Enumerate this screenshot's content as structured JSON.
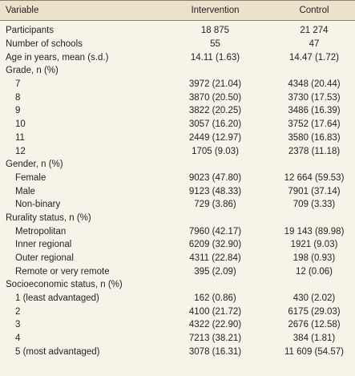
{
  "table": {
    "header": [
      "Variable",
      "Intervention",
      "Control"
    ],
    "rows": [
      {
        "cells": [
          "Participants",
          "18 875",
          "21 274"
        ]
      },
      {
        "cells": [
          "Number of schools",
          "55",
          "47"
        ]
      },
      {
        "cells": [
          "Age in years, mean (s.d.)",
          "14.11 (1.63)",
          "14.47 (1.72)"
        ]
      },
      {
        "group": "Grade, n (%)",
        "rows": [
          [
            "7",
            "3972 (21.04)",
            "4348 (20.44)"
          ],
          [
            "8",
            "3870 (20.50)",
            "3730 (17.53)"
          ],
          [
            "9",
            "3822 (20.25)",
            "3486 (16.39)"
          ],
          [
            "10",
            "3057 (16.20)",
            "3752 (17.64)"
          ],
          [
            "11",
            "2449 (12.97)",
            "3580 (16.83)"
          ],
          [
            "12",
            "1705 (9.03)",
            "2378 (11.18)"
          ]
        ]
      },
      {
        "group": "Gender, n (%)",
        "rows": [
          [
            "Female",
            "9023 (47.80)",
            "12 664 (59.53)"
          ],
          [
            "Male",
            "9123 (48.33)",
            "7901 (37.14)"
          ],
          [
            "Non-binary",
            "729 (3.86)",
            "709 (3.33)"
          ]
        ]
      },
      {
        "group": "Rurality status, n (%)",
        "rows": [
          [
            "Metropolitan",
            "7960 (42.17)",
            "19 143 (89.98)"
          ],
          [
            "Inner regional",
            "6209 (32.90)",
            "1921 (9.03)"
          ],
          [
            "Outer regional",
            "4311 (22.84)",
            "198 (0.93)"
          ],
          [
            "Remote or very remote",
            "395 (2.09)",
            "12 (0.06)"
          ]
        ]
      },
      {
        "group": "Socioeconomic status, n (%)",
        "rows": [
          [
            "1 (least advantaged)",
            "162 (0.86)",
            "430 (2.02)"
          ],
          [
            "2",
            "4100 (21.72)",
            "6175 (29.03)"
          ],
          [
            "3",
            "4322 (22.90)",
            "2676 (12.58)"
          ],
          [
            "4",
            "7213 (38.21)",
            "384 (1.81)"
          ],
          [
            "5 (most advantaged)",
            "3078 (16.31)",
            "11 609 (54.57)"
          ]
        ]
      }
    ]
  }
}
